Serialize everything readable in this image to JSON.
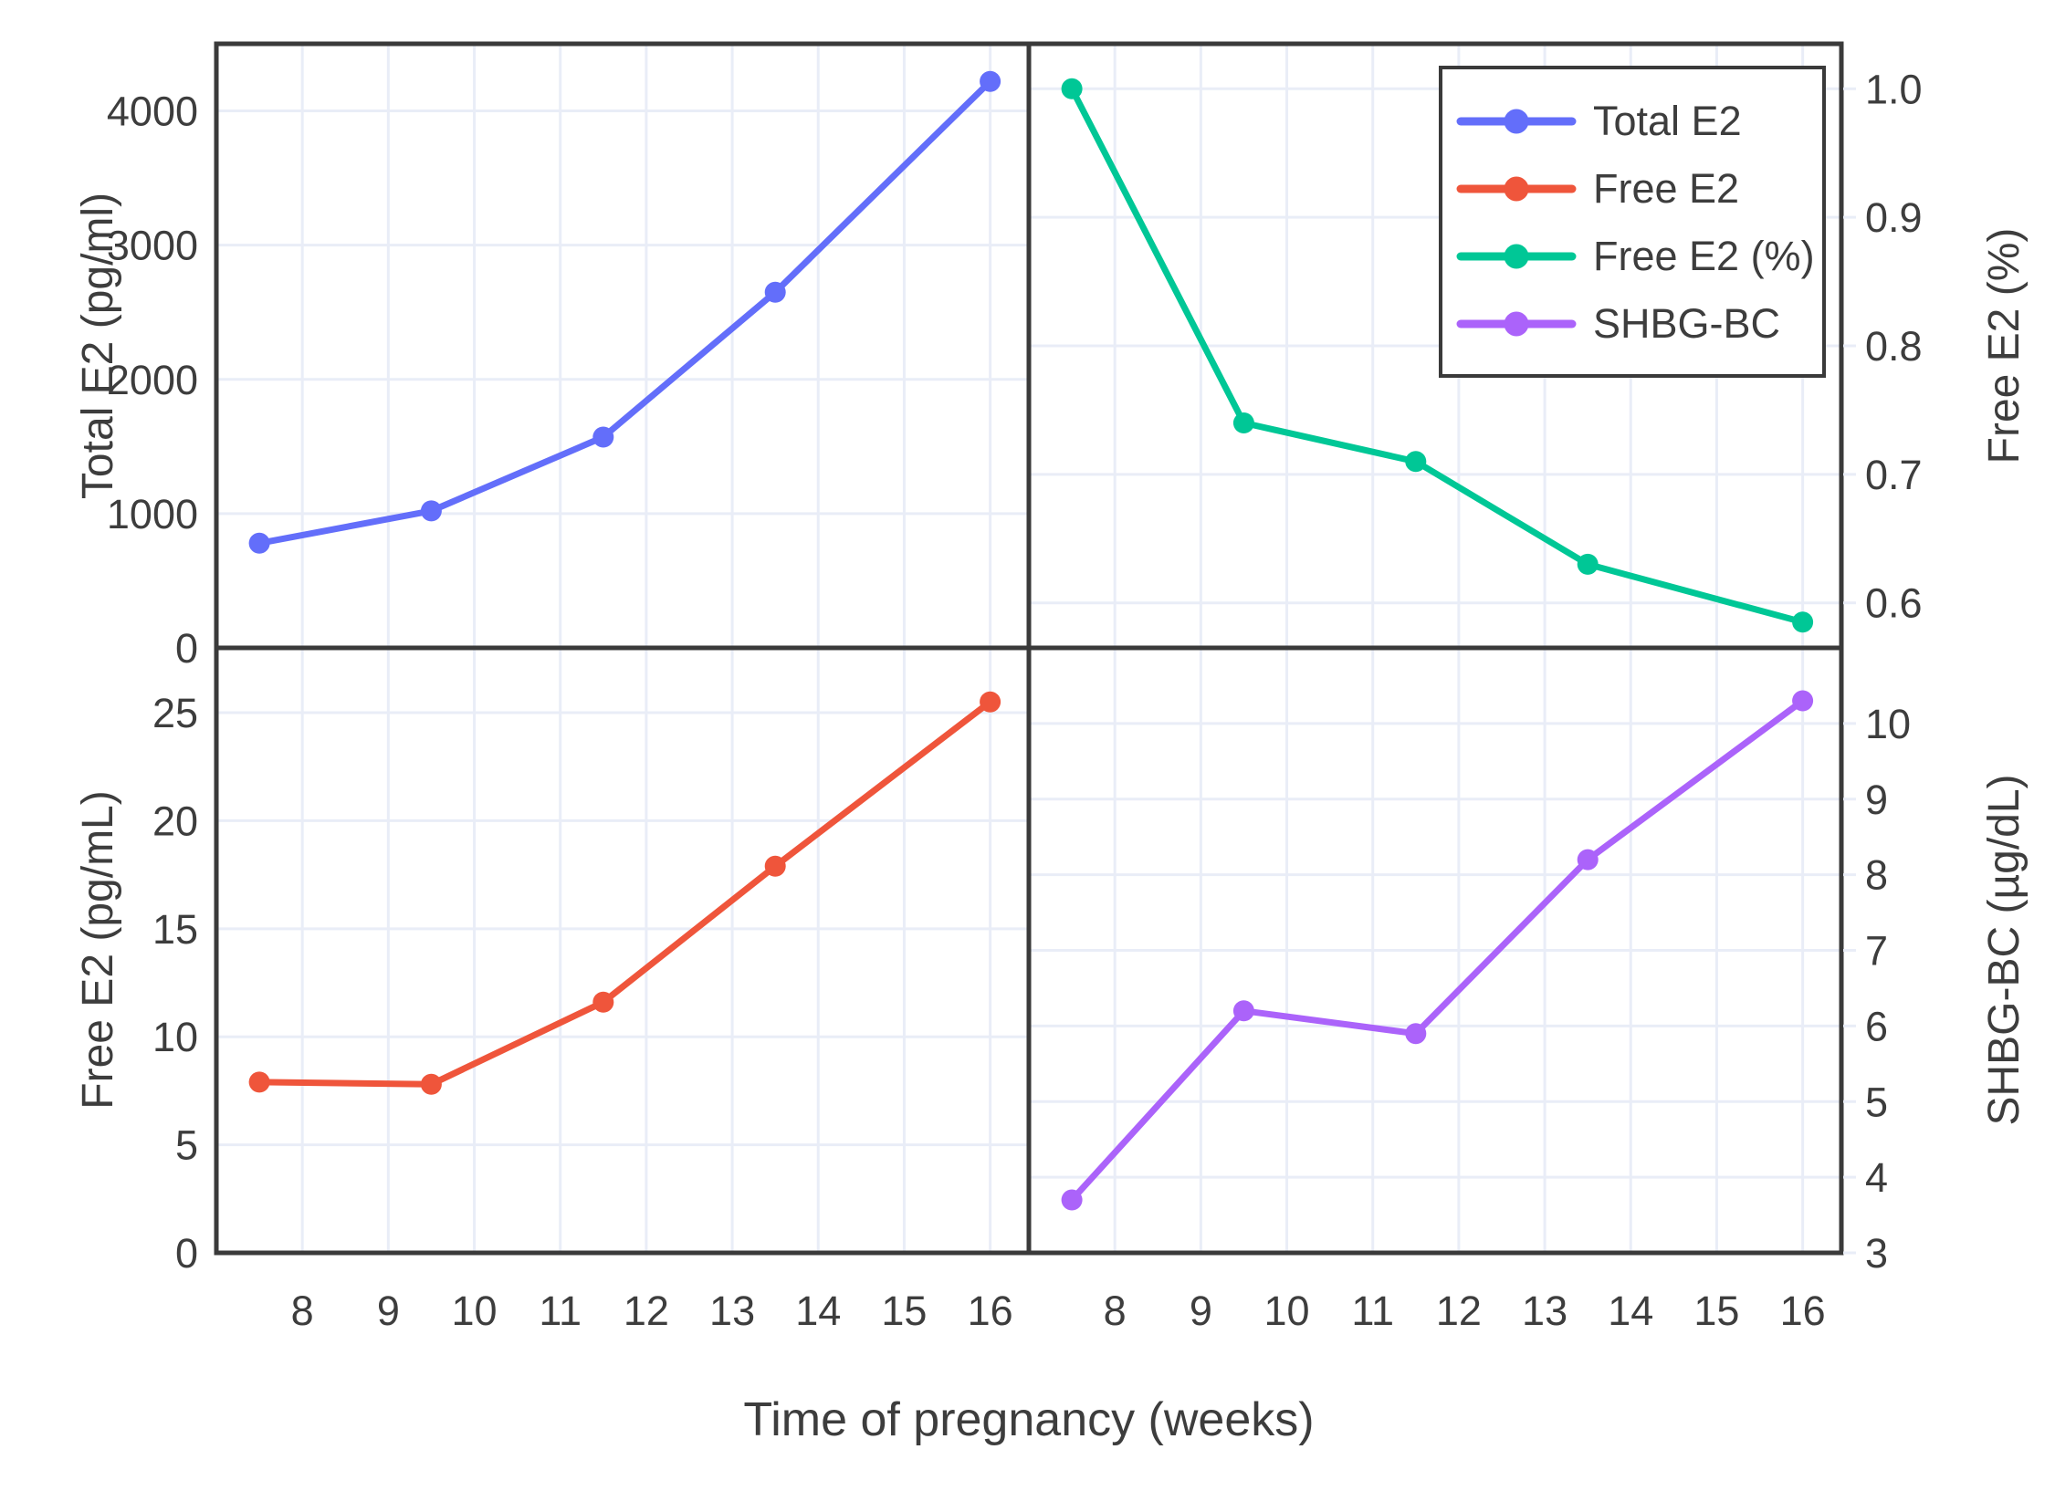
{
  "figure": {
    "x_title": "Time of pregnancy (weeks)",
    "background": "#ffffff"
  },
  "style": {
    "frame_color": "#3a3a3a",
    "grid_color": "#e9edf7",
    "text_color": "#3d3d3d",
    "series_colors": {
      "total_e2": "#636efa",
      "free_e2": "#ef553b",
      "free_e2_pct": "#00c796",
      "shbg_bc": "#ab63fa"
    }
  },
  "legend": {
    "items": [
      {
        "key": "total_e2",
        "label": "Total E2"
      },
      {
        "key": "free_e2",
        "label": "Free E2"
      },
      {
        "key": "free_e2_pct",
        "label": "Free E2 (%)"
      },
      {
        "key": "shbg_bc",
        "label": "SHBG-BC"
      }
    ]
  },
  "chart_data": {
    "type": "line",
    "title": "",
    "xlabel": "Time of pregnancy (weeks)",
    "x": [
      7.5,
      9.5,
      11.5,
      13.5,
      16
    ],
    "x_ticks": [
      8,
      9,
      10,
      11,
      12,
      13,
      14,
      15,
      16
    ],
    "x_range": [
      7.0,
      16.45
    ],
    "grid": true,
    "legend_position": "inside-top-right-subplot",
    "legend_entries": [
      "Total E2",
      "Free E2",
      "Free E2 (%)",
      "SHBG-BC"
    ],
    "subplots": [
      {
        "key": "total_e2",
        "position": "top-left",
        "ylabel": "Total E2 (pg/ml)",
        "axis_side": "left",
        "yticks": [
          0,
          1000,
          2000,
          3000,
          4000
        ],
        "ytick_decimals": 0,
        "yrange": [
          0,
          4500
        ],
        "values": [
          780,
          1020,
          1570,
          2650,
          4220
        ]
      },
      {
        "key": "free_e2_pct",
        "position": "top-right",
        "ylabel": "Free E2 (%)",
        "axis_side": "right",
        "yticks": [
          0.6,
          0.7,
          0.8,
          0.9,
          1.0
        ],
        "ytick_decimals": 1,
        "yrange": [
          0.565,
          1.035
        ],
        "values": [
          1.0,
          0.74,
          0.71,
          0.63,
          0.585
        ]
      },
      {
        "key": "free_e2",
        "position": "bottom-left",
        "ylabel": "Free E2 (pg/mL)",
        "axis_side": "left",
        "yticks": [
          0,
          5,
          10,
          15,
          20,
          25
        ],
        "ytick_decimals": 0,
        "yrange": [
          0,
          28
        ],
        "values": [
          7.9,
          7.8,
          11.6,
          17.9,
          25.5
        ]
      },
      {
        "key": "shbg_bc",
        "position": "bottom-right",
        "ylabel": "SHBG-BC (µg/dL)",
        "axis_side": "right",
        "yticks": [
          3,
          4,
          5,
          6,
          7,
          8,
          9,
          10
        ],
        "ytick_decimals": 0,
        "yrange": [
          3,
          11
        ],
        "values": [
          3.7,
          6.2,
          5.9,
          8.2,
          10.3
        ]
      }
    ]
  }
}
